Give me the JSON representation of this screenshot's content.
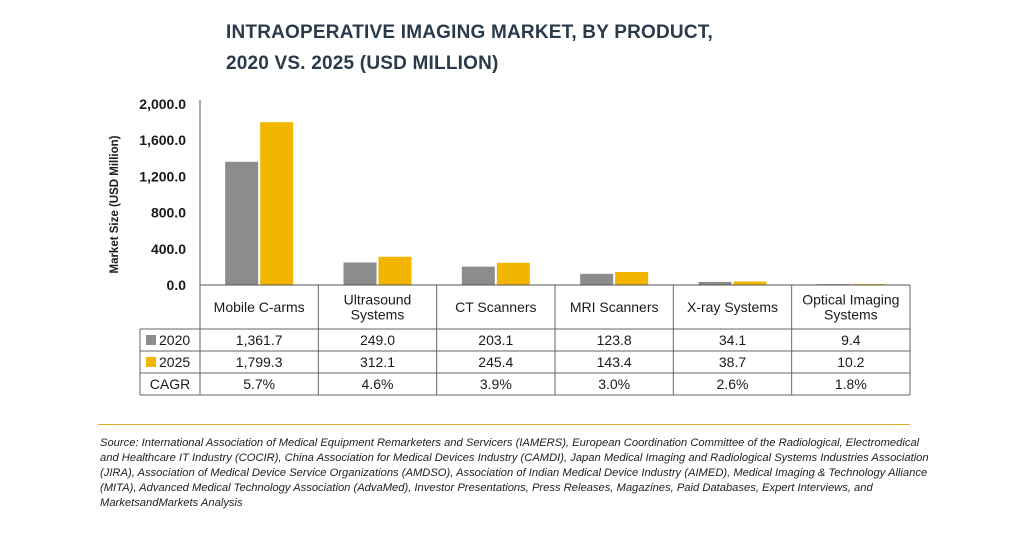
{
  "title": {
    "line1": "INTRAOPERATIVE IMAGING MARKET, BY PRODUCT,",
    "line2": "2020 VS. 2025 (USD MILLION)"
  },
  "chart_data": {
    "type": "bar",
    "title": "INTRAOPERATIVE IMAGING MARKET, BY PRODUCT, 2020 VS. 2025 (USD MILLION)",
    "ylabel": "Market Size (USD Million)",
    "ylim": [
      0,
      2000
    ],
    "yticks": [
      "0.0",
      "400.0",
      "800.0",
      "1,200.0",
      "1,600.0",
      "2,000.0"
    ],
    "ytick_values": [
      0,
      400,
      800,
      1200,
      1600,
      2000
    ],
    "categories": [
      [
        "Mobile C-arms"
      ],
      [
        "Ultrasound",
        "Systems"
      ],
      [
        "CT Scanners"
      ],
      [
        "MRI Scanners"
      ],
      [
        "X-ray Systems"
      ],
      [
        "Optical Imaging",
        "Systems"
      ]
    ],
    "series": [
      {
        "name": "2020",
        "color": "#8c8c8c",
        "values": [
          1361.7,
          249.0,
          203.1,
          123.8,
          34.1,
          9.4
        ],
        "labels": [
          "1,361.7",
          "249.0",
          "203.1",
          "123.8",
          "34.1",
          "9.4"
        ]
      },
      {
        "name": "2025",
        "color": "#f2b600",
        "values": [
          1799.3,
          312.1,
          245.4,
          143.4,
          38.7,
          10.2
        ],
        "labels": [
          "1,799.3",
          "312.1",
          "245.4",
          "143.4",
          "38.7",
          "10.2"
        ]
      }
    ],
    "cagr": {
      "name": "CAGR",
      "labels": [
        "5.7%",
        "4.6%",
        "3.9%",
        "3.0%",
        "2.6%",
        "1.8%"
      ]
    },
    "grid": false,
    "legend": "table"
  },
  "source": "Source: International Association of Medical Equipment Remarketers and Servicers (IAMERS), European Coordination Committee of the Radiological, Electromedical and Healthcare IT Industry (COCIR), China Association for Medical Devices Industry (CAMDI), Japan Medical Imaging and Radiological Systems Industries Association (JIRA), Association of Medical Device Service Organizations (AMDSO), Association of Indian Medical Device Industry (AIMED), Medical Imaging & Technology Alliance (MITA), Advanced Medical Technology Association (AdvaMed), Investor Presentations, Press Releases, Magazines, Paid Databases, Expert Interviews, and MarketsandMarkets Analysis"
}
